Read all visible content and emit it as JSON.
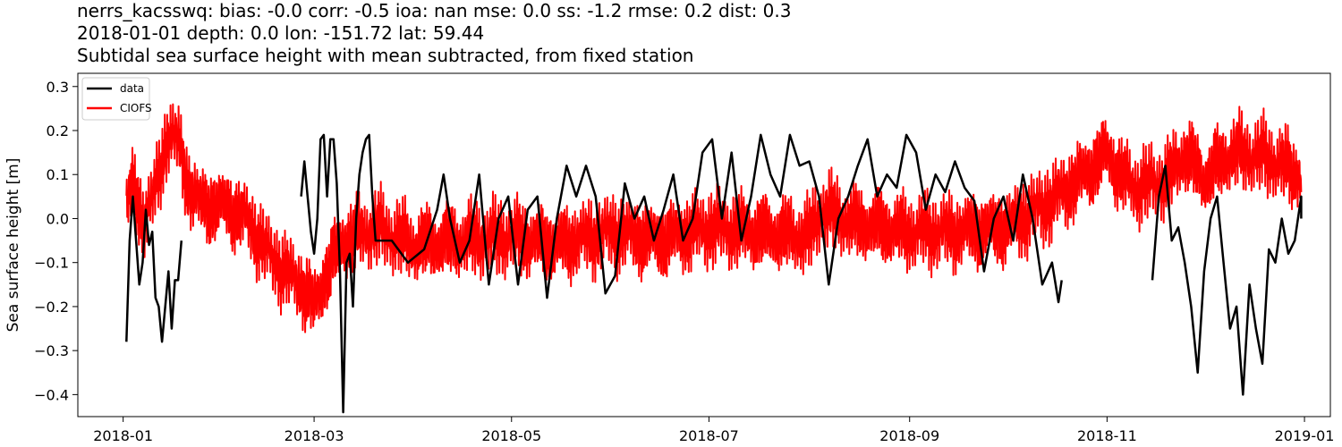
{
  "title_lines": [
    "nerrs_kacsswq: bias: -0.0  corr: -0.5  ioa: nan  mse: 0.0  ss: -1.2  rmse: 0.2  dist: 0.3",
    "2018-01-01 depth: 0.0 lon: -151.72 lat: 59.44",
    "Subtidal sea surface height with mean subtracted, from fixed station"
  ],
  "chart_data": {
    "type": "line",
    "ylabel": "Sea surface height [m]",
    "xlabel": "",
    "xlim": [
      "2017-12-18",
      "2019-01-09"
    ],
    "ylim": [
      -0.45,
      0.33
    ],
    "x_ticks": [
      "2018-01",
      "2018-03",
      "2018-05",
      "2018-07",
      "2018-09",
      "2018-11",
      "2019-01"
    ],
    "y_ticks": [
      0.3,
      0.2,
      0.1,
      0.0,
      -0.1,
      -0.2,
      -0.3,
      -0.4
    ],
    "y_tick_labels": [
      "0.3",
      "0.2",
      "0.1",
      "0.0",
      "−0.1",
      "−0.2",
      "−0.3",
      "−0.4"
    ],
    "legend": {
      "position": "top-left"
    },
    "series": [
      {
        "name": "data",
        "color": "#000000",
        "segments": [
          [
            [
              "2018-01-02",
              -0.28
            ],
            [
              "2018-01-03",
              -0.05
            ],
            [
              "2018-01-04",
              0.05
            ],
            [
              "2018-01-05",
              -0.05
            ],
            [
              "2018-01-06",
              -0.15
            ],
            [
              "2018-01-07",
              -0.1
            ],
            [
              "2018-01-08",
              0.02
            ],
            [
              "2018-01-09",
              -0.06
            ],
            [
              "2018-01-10",
              -0.03
            ],
            [
              "2018-01-11",
              -0.18
            ],
            [
              "2018-01-12",
              -0.2
            ],
            [
              "2018-01-13",
              -0.28
            ],
            [
              "2018-01-14",
              -0.2
            ],
            [
              "2018-01-15",
              -0.12
            ],
            [
              "2018-01-16",
              -0.25
            ],
            [
              "2018-01-17",
              -0.14
            ],
            [
              "2018-01-18",
              -0.14
            ],
            [
              "2018-01-19",
              -0.05
            ]
          ],
          [
            [
              "2018-02-25",
              0.05
            ],
            [
              "2018-02-26",
              0.13
            ],
            [
              "2018-02-27",
              0.05
            ],
            [
              "2018-02-28",
              -0.03
            ],
            [
              "2018-03-01",
              -0.08
            ],
            [
              "2018-03-02",
              0.0
            ],
            [
              "2018-03-03",
              0.18
            ],
            [
              "2018-03-04",
              0.19
            ],
            [
              "2018-03-05",
              0.05
            ],
            [
              "2018-03-06",
              0.18
            ],
            [
              "2018-03-07",
              0.18
            ],
            [
              "2018-03-08",
              0.08
            ],
            [
              "2018-03-09",
              -0.12
            ],
            [
              "2018-03-10",
              -0.44
            ],
            [
              "2018-03-11",
              -0.1
            ],
            [
              "2018-03-12",
              -0.08
            ],
            [
              "2018-03-13",
              -0.2
            ],
            [
              "2018-03-14",
              0.0
            ],
            [
              "2018-03-15",
              0.1
            ],
            [
              "2018-03-16",
              0.15
            ],
            [
              "2018-03-17",
              0.18
            ],
            [
              "2018-03-18",
              0.19
            ],
            [
              "2018-03-19",
              0.05
            ],
            [
              "2018-03-20",
              -0.05
            ],
            [
              "2018-03-25",
              -0.05
            ],
            [
              "2018-03-30",
              -0.1
            ],
            [
              "2018-04-04",
              -0.07
            ],
            [
              "2018-04-08",
              0.02
            ],
            [
              "2018-04-10",
              0.1
            ],
            [
              "2018-04-12",
              0.0
            ],
            [
              "2018-04-15",
              -0.1
            ],
            [
              "2018-04-18",
              -0.05
            ],
            [
              "2018-04-21",
              0.1
            ],
            [
              "2018-04-24",
              -0.15
            ],
            [
              "2018-04-27",
              0.0
            ],
            [
              "2018-04-30",
              0.05
            ],
            [
              "2018-05-03",
              -0.15
            ],
            [
              "2018-05-06",
              0.02
            ],
            [
              "2018-05-09",
              0.05
            ],
            [
              "2018-05-12",
              -0.18
            ],
            [
              "2018-05-15",
              0.0
            ],
            [
              "2018-05-18",
              0.12
            ],
            [
              "2018-05-21",
              0.05
            ],
            [
              "2018-05-24",
              0.12
            ],
            [
              "2018-05-27",
              0.05
            ],
            [
              "2018-05-30",
              -0.17
            ],
            [
              "2018-06-02",
              -0.13
            ],
            [
              "2018-06-05",
              0.08
            ],
            [
              "2018-06-08",
              0.0
            ],
            [
              "2018-06-11",
              0.05
            ],
            [
              "2018-06-14",
              -0.05
            ],
            [
              "2018-06-17",
              0.02
            ],
            [
              "2018-06-20",
              0.1
            ],
            [
              "2018-06-23",
              -0.05
            ],
            [
              "2018-06-26",
              0.0
            ],
            [
              "2018-06-29",
              0.15
            ],
            [
              "2018-07-02",
              0.18
            ],
            [
              "2018-07-05",
              0.0
            ],
            [
              "2018-07-08",
              0.15
            ],
            [
              "2018-07-11",
              -0.05
            ],
            [
              "2018-07-14",
              0.05
            ],
            [
              "2018-07-17",
              0.19
            ],
            [
              "2018-07-20",
              0.1
            ],
            [
              "2018-07-23",
              0.05
            ],
            [
              "2018-07-26",
              0.19
            ],
            [
              "2018-07-29",
              0.12
            ],
            [
              "2018-08-01",
              0.13
            ],
            [
              "2018-08-04",
              0.05
            ],
            [
              "2018-08-07",
              -0.15
            ],
            [
              "2018-08-10",
              0.0
            ],
            [
              "2018-08-13",
              0.05
            ],
            [
              "2018-08-16",
              0.12
            ],
            [
              "2018-08-19",
              0.18
            ],
            [
              "2018-08-22",
              0.05
            ],
            [
              "2018-08-25",
              0.1
            ],
            [
              "2018-08-28",
              0.07
            ],
            [
              "2018-08-31",
              0.19
            ],
            [
              "2018-09-03",
              0.15
            ],
            [
              "2018-09-06",
              0.02
            ],
            [
              "2018-09-09",
              0.1
            ],
            [
              "2018-09-12",
              0.06
            ],
            [
              "2018-09-15",
              0.13
            ],
            [
              "2018-09-18",
              0.07
            ],
            [
              "2018-09-21",
              0.04
            ],
            [
              "2018-09-24",
              -0.12
            ],
            [
              "2018-09-27",
              0.0
            ],
            [
              "2018-09-30",
              0.05
            ],
            [
              "2018-10-03",
              -0.05
            ],
            [
              "2018-10-06",
              0.1
            ],
            [
              "2018-10-09",
              0.0
            ],
            [
              "2018-10-12",
              -0.15
            ],
            [
              "2018-10-15",
              -0.1
            ],
            [
              "2018-10-17",
              -0.19
            ],
            [
              "2018-10-18",
              -0.14
            ]
          ],
          [
            [
              "2018-11-15",
              -0.14
            ],
            [
              "2018-11-17",
              0.05
            ],
            [
              "2018-11-19",
              0.12
            ],
            [
              "2018-11-21",
              -0.05
            ],
            [
              "2018-11-23",
              -0.02
            ],
            [
              "2018-11-25",
              -0.1
            ],
            [
              "2018-11-27",
              -0.2
            ],
            [
              "2018-11-29",
              -0.35
            ],
            [
              "2018-12-01",
              -0.12
            ],
            [
              "2018-12-03",
              0.0
            ],
            [
              "2018-12-05",
              0.05
            ],
            [
              "2018-12-07",
              -0.1
            ],
            [
              "2018-12-09",
              -0.25
            ],
            [
              "2018-12-11",
              -0.2
            ],
            [
              "2018-12-13",
              -0.4
            ],
            [
              "2018-12-15",
              -0.15
            ],
            [
              "2018-12-17",
              -0.25
            ],
            [
              "2018-12-19",
              -0.33
            ],
            [
              "2018-12-21",
              -0.07
            ],
            [
              "2018-12-23",
              -0.1
            ],
            [
              "2018-12-25",
              0.0
            ],
            [
              "2018-12-27",
              -0.08
            ],
            [
              "2018-12-29",
              -0.05
            ],
            [
              "2018-12-31",
              0.05
            ],
            [
              "2018-12-31",
              0.0
            ]
          ]
        ]
      },
      {
        "name": "CIOFS",
        "color": "#ff0000",
        "trend": [
          [
            "2018-01-02",
            0.03
          ],
          [
            "2018-01-04",
            0.07
          ],
          [
            "2018-01-07",
            0.0
          ],
          [
            "2018-01-11",
            0.06
          ],
          [
            "2018-01-15",
            0.2
          ],
          [
            "2018-01-18",
            0.17
          ],
          [
            "2018-01-21",
            0.08
          ],
          [
            "2018-01-25",
            0.03
          ],
          [
            "2018-02-01",
            0.03
          ],
          [
            "2018-02-08",
            0.0
          ],
          [
            "2018-02-15",
            -0.08
          ],
          [
            "2018-02-20",
            -0.12
          ],
          [
            "2018-02-25",
            -0.15
          ],
          [
            "2018-03-01",
            -0.2
          ],
          [
            "2018-03-05",
            -0.12
          ],
          [
            "2018-03-10",
            -0.05
          ],
          [
            "2018-03-20",
            -0.02
          ],
          [
            "2018-04-01",
            -0.06
          ],
          [
            "2018-04-15",
            -0.05
          ],
          [
            "2018-05-01",
            -0.04
          ],
          [
            "2018-05-15",
            -0.06
          ],
          [
            "2018-06-01",
            -0.03
          ],
          [
            "2018-06-15",
            -0.05
          ],
          [
            "2018-07-01",
            -0.02
          ],
          [
            "2018-07-15",
            -0.03
          ],
          [
            "2018-08-01",
            -0.04
          ],
          [
            "2018-08-05",
            0.02
          ],
          [
            "2018-08-15",
            -0.01
          ],
          [
            "2018-09-01",
            -0.03
          ],
          [
            "2018-09-15",
            -0.03
          ],
          [
            "2018-10-01",
            -0.02
          ],
          [
            "2018-10-15",
            0.04
          ],
          [
            "2018-10-25",
            0.1
          ],
          [
            "2018-11-01",
            0.15
          ],
          [
            "2018-11-05",
            0.1
          ],
          [
            "2018-11-10",
            0.07
          ],
          [
            "2018-11-20",
            0.09
          ],
          [
            "2018-11-25",
            0.15
          ],
          [
            "2018-12-01",
            0.09
          ],
          [
            "2018-12-05",
            0.12
          ],
          [
            "2018-12-10",
            0.15
          ],
          [
            "2018-12-20",
            0.14
          ],
          [
            "2018-12-31",
            0.1
          ]
        ],
        "oscillation_amplitude": 0.07
      }
    ]
  }
}
